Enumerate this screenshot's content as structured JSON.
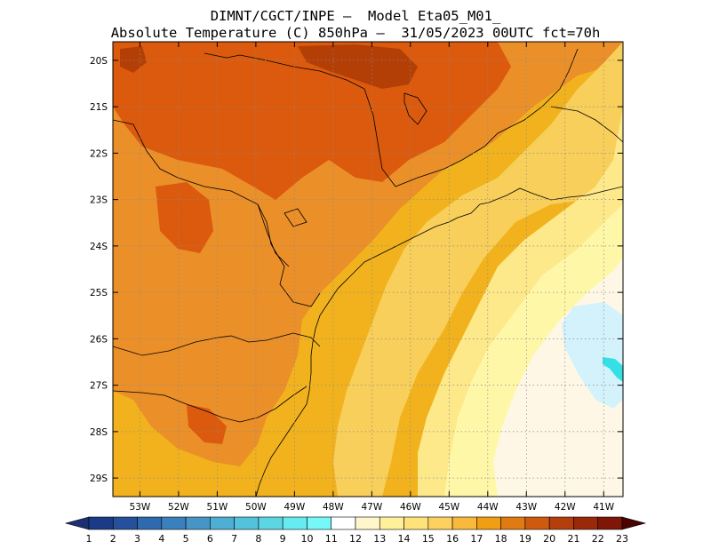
{
  "header": {
    "line1": "DIMNT/CGCT/INPE –  Model Eta05_M01_",
    "line2": "Absolute Temperature (C) 850hPa –  31/05/2023 00UTC fct=70h"
  },
  "map": {
    "lon_ticks": [
      "53W",
      "52W",
      "51W",
      "50W",
      "49W",
      "48W",
      "47W",
      "46W",
      "45W",
      "44W",
      "43W",
      "42W",
      "41W"
    ],
    "lat_ticks": [
      "20S",
      "21S",
      "22S",
      "23S",
      "24S",
      "25S",
      "26S",
      "27S",
      "28S",
      "29S"
    ],
    "lon_range": [
      -53.7,
      -40.5
    ],
    "lat_range": [
      -19.6,
      -29.4
    ],
    "grid": true
  },
  "colorbar": {
    "labels": [
      "1",
      "2",
      "3",
      "4",
      "5",
      "6",
      "7",
      "8",
      "9",
      "10",
      "11",
      "12",
      "13",
      "14",
      "15",
      "16",
      "17",
      "18",
      "19",
      "20",
      "21",
      "22",
      "23"
    ],
    "colors": [
      "#1c3b86",
      "#25509c",
      "#2f6aae",
      "#3a80bd",
      "#4795c7",
      "#4faed4",
      "#55c2dd",
      "#5dd6e4",
      "#66ecf0",
      "#76f8f8",
      "#ffffff",
      "#fff6cc",
      "#fff09a",
      "#ffe37a",
      "#fdd060",
      "#f8b93c",
      "#f09e12",
      "#e07a12",
      "#ce5a10",
      "#b53f0c",
      "#9a290a",
      "#7e1708",
      "#5e0606"
    ],
    "end_low_color": "#1b2f73",
    "end_high_color": "#4a0303"
  },
  "field_colors": {
    "t11": "#d4f2fb",
    "t12": "#fef7e6",
    "t13": "#fff7a8",
    "t14": "#fde88a",
    "t15": "#f8cf5a",
    "t16": "#f1b21d",
    "t17": "#eb8f29",
    "t18": "#db5a0d",
    "t19": "#b33f06",
    "aqua": "#35e0e4"
  }
}
